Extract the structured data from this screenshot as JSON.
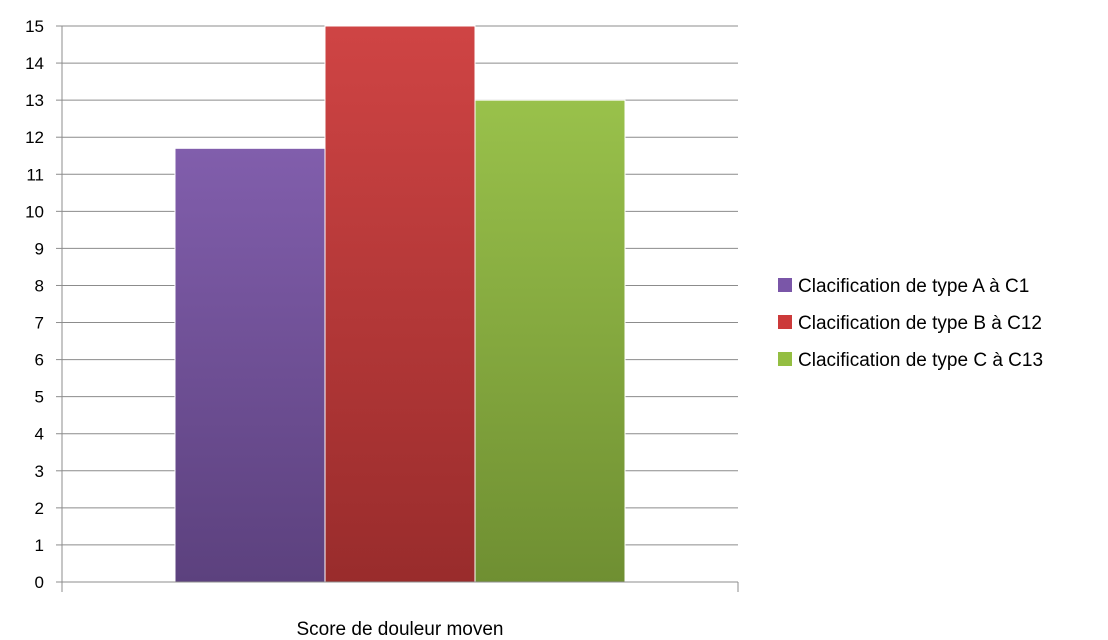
{
  "chart_data": {
    "type": "bar",
    "title": "",
    "xlabel": "",
    "ylabel": "",
    "categories": [
      "Score de douleur moyen"
    ],
    "series": [
      {
        "name": "Clacification de type A à C1",
        "values": [
          11.7
        ],
        "color": "#7a56a8"
      },
      {
        "name": "Clacification de type B à C12",
        "values": [
          15
        ],
        "color": "#cc3a3a"
      },
      {
        "name": "Clacification de type C à C13",
        "values": [
          13
        ],
        "color": "#94be42"
      }
    ],
    "ylim": [
      0,
      15
    ],
    "yticks": [
      "0",
      "1",
      "2",
      "3",
      "4",
      "5",
      "6",
      "7",
      "8",
      "9",
      "10",
      "11",
      "12",
      "13",
      "14",
      "15"
    ],
    "grid": true,
    "legend_position": "right"
  }
}
